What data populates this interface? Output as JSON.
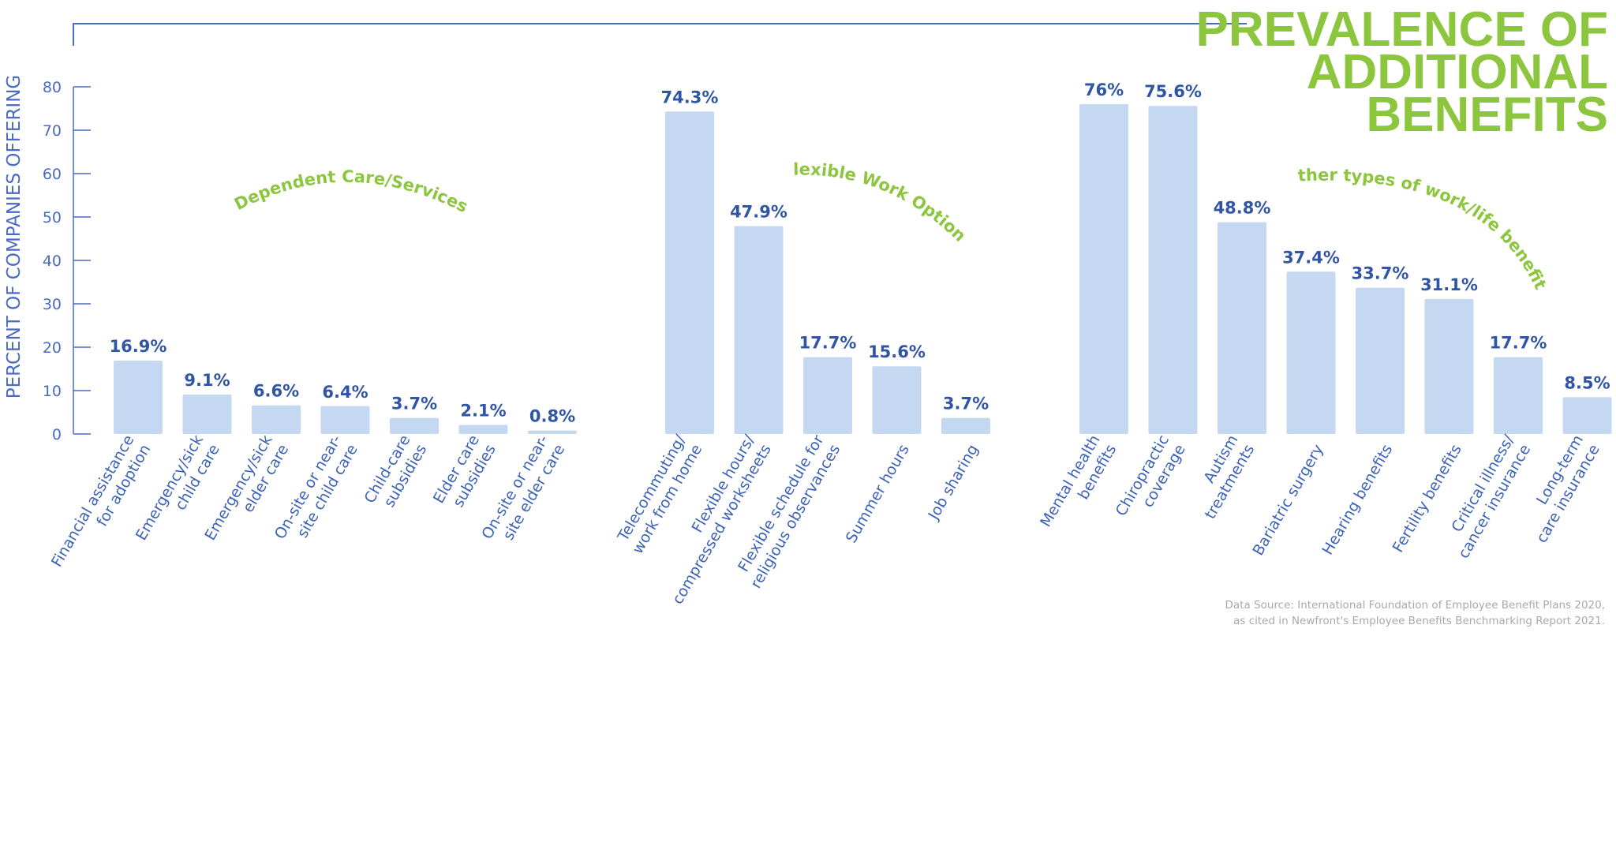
{
  "title_lines": [
    "PREVALENCE OF",
    "ADDITIONAL",
    "BENEFITS"
  ],
  "source_lines": [
    "Data Source:  International Foundation of Employee Benefit Plans 2020,",
    "as cited in Newfront's Employee Benefits Benchmarking Report 2021."
  ],
  "colors": {
    "bar": "#c5d8f2",
    "axis": "#4a6bbf",
    "value_label": "#2f55a4",
    "group_label": "#8cc63f",
    "category_label": "#3d63b8",
    "source": "#a9a9a9"
  },
  "chart_data": {
    "type": "bar",
    "title": "PREVALENCE OF ADDITIONAL BENEFITS",
    "ylabel": "PERCENT OF COMPANIES OFFERING",
    "ylim": [
      0,
      80
    ],
    "yticks": [
      0,
      10,
      20,
      30,
      40,
      50,
      60,
      70,
      80
    ],
    "groups": [
      {
        "name": "Dependent Care/Services",
        "categories": [
          [
            "Financial assistance",
            "for adoption"
          ],
          [
            "Emergency/sick",
            "child care"
          ],
          [
            "Emergency/sick",
            "elder care"
          ],
          [
            "On-site or near-",
            "site child care"
          ],
          [
            "Child-care",
            "subsidies"
          ],
          [
            "Elder care",
            "subsidies"
          ],
          [
            "On-site or near-",
            "site elder care"
          ]
        ],
        "values": [
          16.9,
          9.1,
          6.6,
          6.4,
          3.7,
          2.1,
          0.8
        ],
        "value_labels": [
          "16.9%",
          "9.1%",
          "6.6%",
          "6.4%",
          "3.7%",
          "2.1%",
          "0.8%"
        ]
      },
      {
        "name": "Flexible Work Options",
        "categories": [
          [
            "Telecommuting/",
            "work from home"
          ],
          [
            "Flexible hours/",
            "compressed worksheets"
          ],
          [
            "Flexible schedule for",
            "religious observances"
          ],
          [
            "Summer hours"
          ],
          [
            "Job sharing"
          ]
        ],
        "values": [
          74.3,
          47.9,
          17.7,
          15.6,
          3.7
        ],
        "value_labels": [
          "74.3%",
          "47.9%",
          "17.7%",
          "15.6%",
          "3.7%"
        ]
      },
      {
        "name": "Other types of work/life benefits",
        "categories": [
          [
            "Mental health",
            "benefits"
          ],
          [
            "Chiropractic",
            "coverage"
          ],
          [
            "Autism",
            "treatments"
          ],
          [
            "Bariatric surgery"
          ],
          [
            "Hearing benefits"
          ],
          [
            "Fertility benefits"
          ],
          [
            "Critical illness/",
            "cancer insurance"
          ],
          [
            "Long-term",
            "care insurance"
          ]
        ],
        "values": [
          76,
          75.6,
          48.8,
          37.4,
          33.7,
          31.1,
          17.7,
          8.5
        ],
        "value_labels": [
          "76%",
          "75.6%",
          "48.8%",
          "37.4%",
          "33.7%",
          "31.1%",
          "17.7%",
          "8.5%"
        ]
      }
    ]
  }
}
